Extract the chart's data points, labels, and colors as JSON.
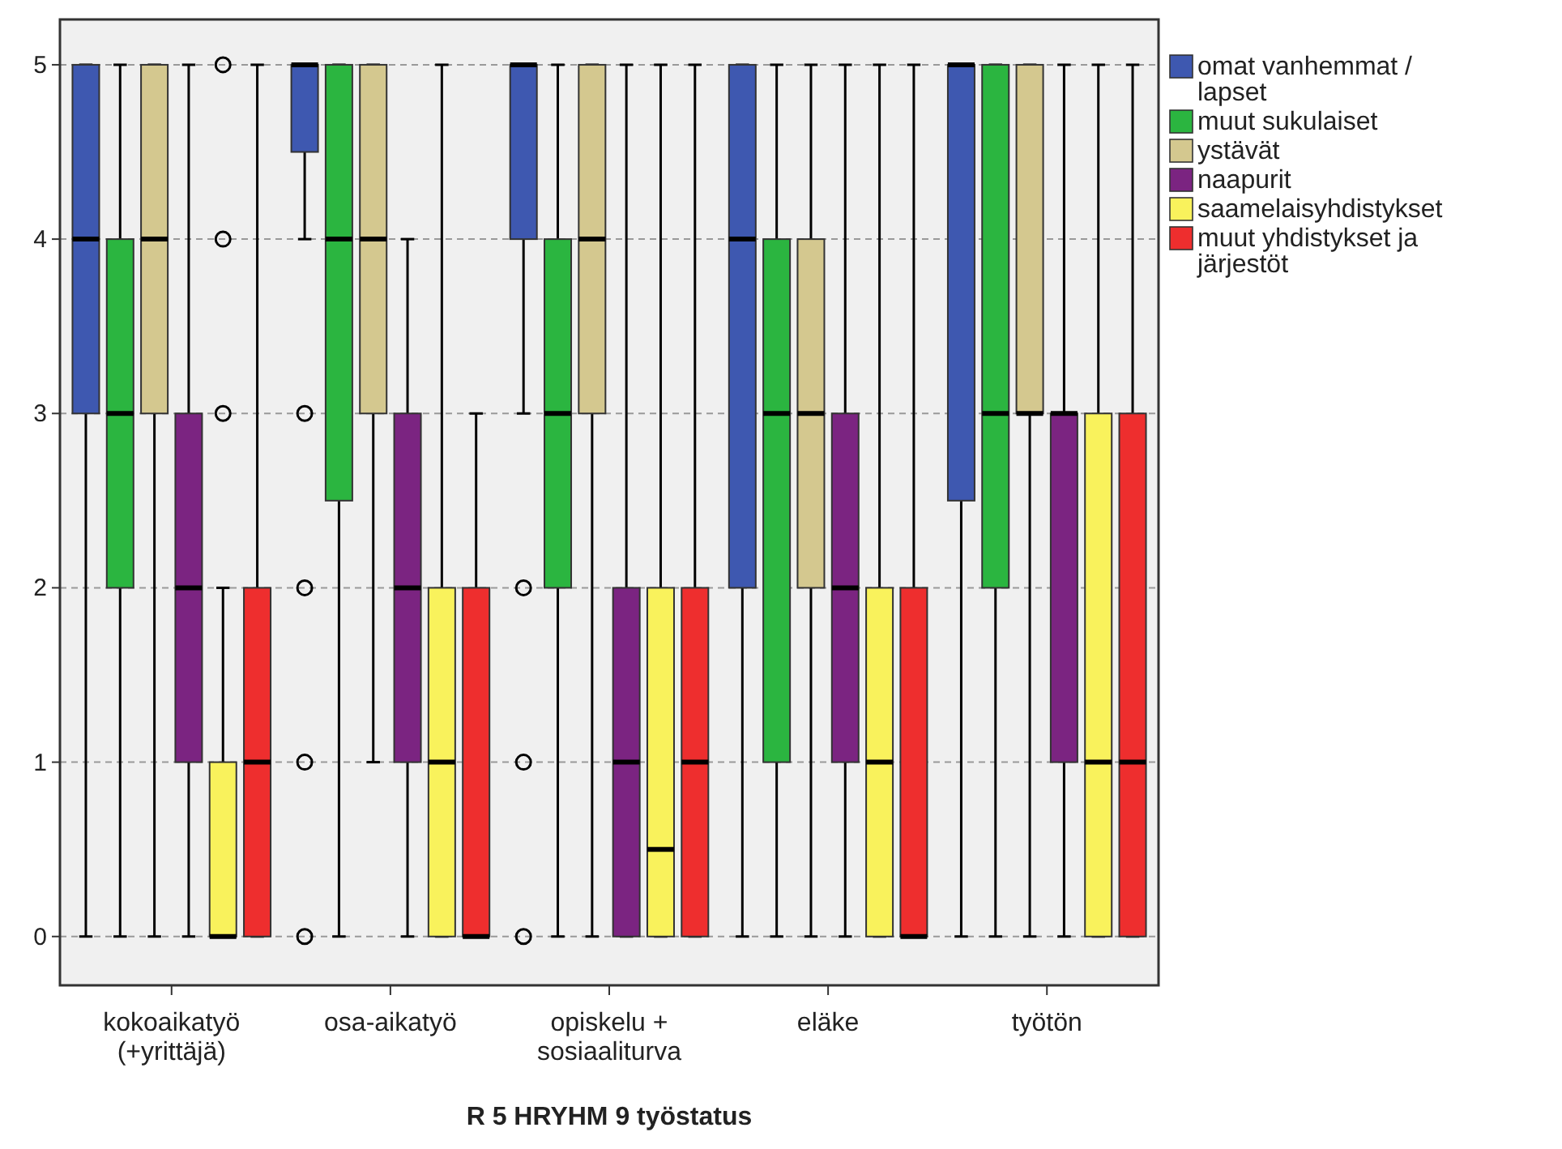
{
  "chart_data": {
    "type": "box",
    "xlabel": "R 5 HRYHM 9 työstatus",
    "categories": [
      "kokoaikatyö (+yrittäjä)",
      "osa-aikatyö",
      "opiskelu + sosiaaliturva",
      "eläke",
      "työtön"
    ],
    "ylim": [
      -0.28,
      5.26
    ],
    "yticks": [
      0,
      1,
      2,
      3,
      4,
      5
    ],
    "grid": "y",
    "legend": "top right",
    "series": [
      {
        "name": "omat vanhemmat / lapset",
        "color": "#3e58b0",
        "boxes": [
          {
            "low": 0,
            "q1": 3,
            "median": 4,
            "q3": 5,
            "high": 5
          },
          {
            "low": 4,
            "q1": 4.5,
            "median": 5,
            "q3": 5,
            "high": 5,
            "outliers": [
              3,
              2,
              1,
              0
            ]
          },
          {
            "low": 3,
            "q1": 4,
            "median": 5,
            "q3": 5,
            "high": 5,
            "outliers": [
              2,
              1,
              0
            ]
          },
          {
            "low": 0,
            "q1": 2,
            "median": 4,
            "q3": 5,
            "high": 5
          },
          {
            "low": 0,
            "q1": 2.5,
            "median": 5,
            "q3": 5,
            "high": 5
          }
        ]
      },
      {
        "name": "muut sukulaiset",
        "color": "#2bb540",
        "boxes": [
          {
            "low": 0,
            "q1": 2,
            "median": 3,
            "q3": 4,
            "high": 5
          },
          {
            "low": 0,
            "q1": 2.5,
            "median": 4,
            "q3": 5,
            "high": 5
          },
          {
            "low": 0,
            "q1": 2,
            "median": 3,
            "q3": 4,
            "high": 5
          },
          {
            "low": 0,
            "q1": 1,
            "median": 3,
            "q3": 4,
            "high": 5
          },
          {
            "low": 0,
            "q1": 2,
            "median": 3,
            "q3": 5,
            "high": 5
          }
        ]
      },
      {
        "name": "ystävät",
        "color": "#d4c88f",
        "boxes": [
          {
            "low": 0,
            "q1": 3,
            "median": 4,
            "q3": 5,
            "high": 5
          },
          {
            "low": 1,
            "q1": 3,
            "median": 4,
            "q3": 5,
            "high": 5
          },
          {
            "low": 0,
            "q1": 3,
            "median": 4,
            "q3": 5,
            "high": 5
          },
          {
            "low": 0,
            "q1": 2,
            "median": 3,
            "q3": 4,
            "high": 5
          },
          {
            "low": 0,
            "q1": 3,
            "median": 3,
            "q3": 5,
            "high": 5
          }
        ]
      },
      {
        "name": "naapurit",
        "color": "#7b2481",
        "boxes": [
          {
            "low": 0,
            "q1": 1,
            "median": 2,
            "q3": 3,
            "high": 5
          },
          {
            "low": 0,
            "q1": 1,
            "median": 2,
            "q3": 3,
            "high": 4
          },
          {
            "low": 0,
            "q1": 0,
            "median": 1,
            "q3": 2,
            "high": 5
          },
          {
            "low": 0,
            "q1": 1,
            "median": 2,
            "q3": 3,
            "high": 5
          },
          {
            "low": 0,
            "q1": 1,
            "median": 3,
            "q3": 3,
            "high": 5
          }
        ]
      },
      {
        "name": "saamelaisyhdistykset",
        "color": "#f9f25c",
        "boxes": [
          {
            "low": 0,
            "q1": 0,
            "median": 0,
            "q3": 1,
            "high": 2,
            "outliers": [
              3,
              4,
              5
            ]
          },
          {
            "low": 0,
            "q1": 0,
            "median": 1,
            "q3": 2,
            "high": 5
          },
          {
            "low": 0,
            "q1": 0,
            "median": 0.5,
            "q3": 2,
            "high": 5
          },
          {
            "low": 0,
            "q1": 0,
            "median": 1,
            "q3": 2,
            "high": 5
          },
          {
            "low": 0,
            "q1": 0,
            "median": 1,
            "q3": 3,
            "high": 5
          }
        ]
      },
      {
        "name": "muut yhdistykset ja järjestöt",
        "color": "#ee2e2e",
        "boxes": [
          {
            "low": 0,
            "q1": 0,
            "median": 1,
            "q3": 2,
            "high": 5
          },
          {
            "low": 0,
            "q1": 0,
            "median": 0,
            "q3": 2,
            "high": 3
          },
          {
            "low": 0,
            "q1": 0,
            "median": 1,
            "q3": 2,
            "high": 5
          },
          {
            "low": 0,
            "q1": 0,
            "median": 0,
            "q3": 2,
            "high": 5
          },
          {
            "low": 0,
            "q1": 0,
            "median": 1,
            "q3": 3,
            "high": 5
          }
        ]
      }
    ]
  }
}
